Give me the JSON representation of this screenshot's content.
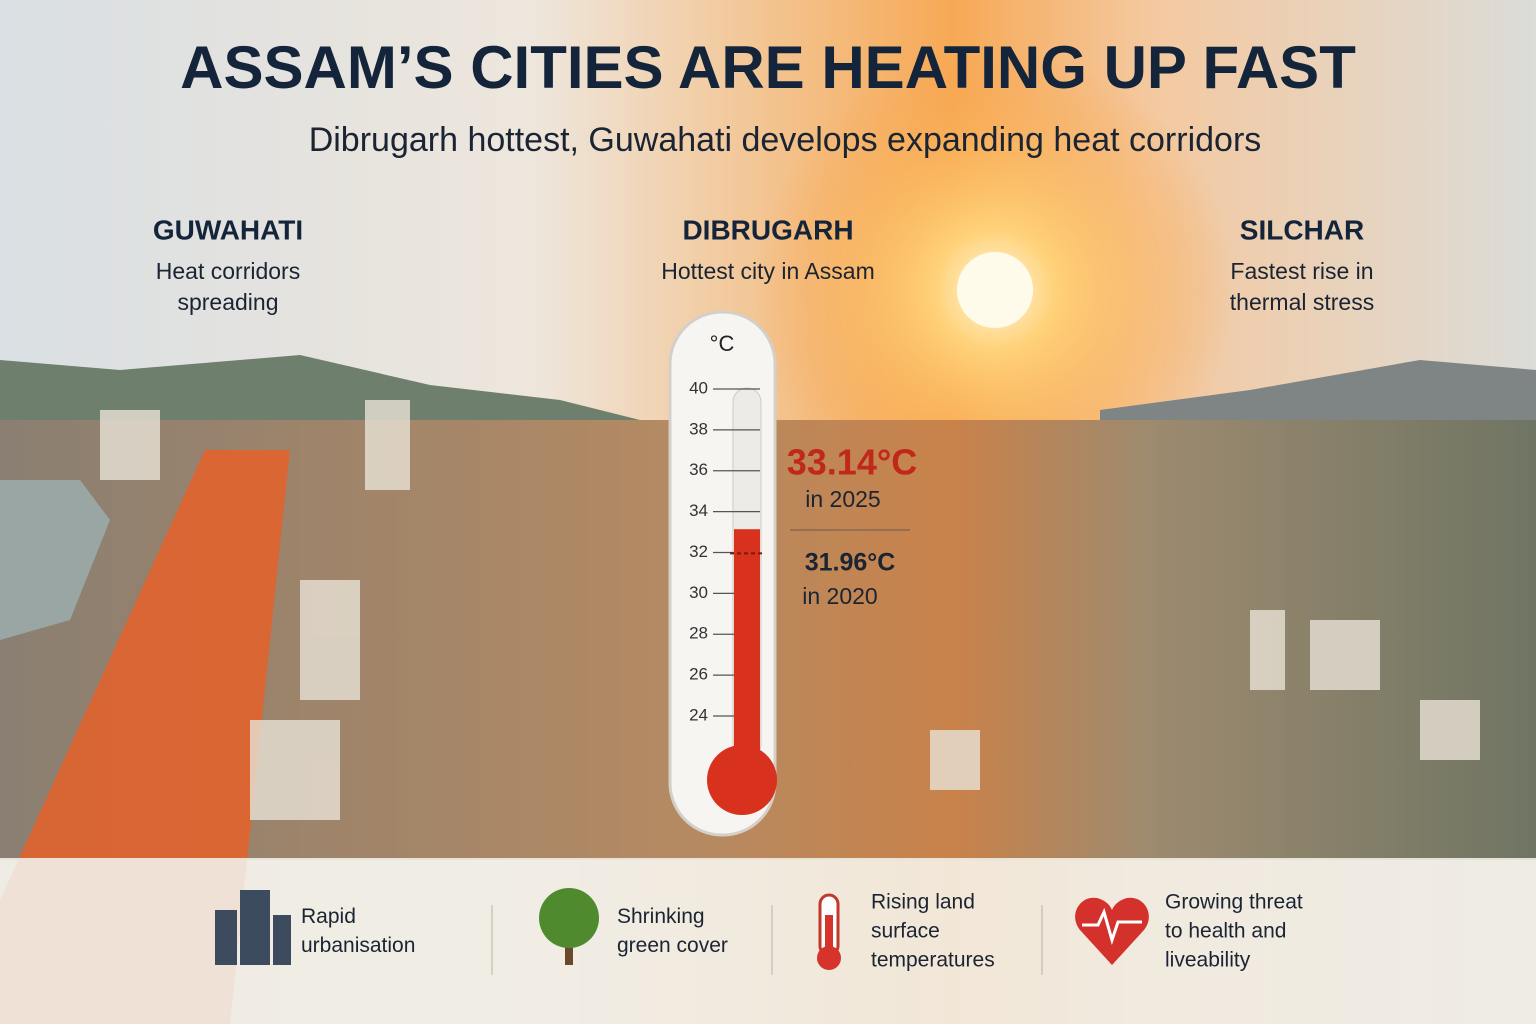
{
  "header": {
    "title": "ASSAM’S CITIES ARE HEATING UP FAST",
    "subtitle": "Dibrugarh hottest, Guwahati develops expanding heat corridors"
  },
  "cities": [
    {
      "name": "GUWAHATI",
      "description": [
        "Heat corridors",
        "spreading"
      ]
    },
    {
      "name": "DIBRUGARH",
      "description": [
        "Hottest city in Assam"
      ]
    },
    {
      "name": "SILCHAR",
      "description": [
        "Fastest rise in",
        "thermal stress"
      ]
    }
  ],
  "thermometer": {
    "unit": "°C",
    "ticks": [
      40,
      38,
      36,
      34,
      32,
      30,
      28,
      26,
      24
    ],
    "readings": [
      {
        "value": 33.14,
        "label": "33.14°C",
        "year": "in 2025"
      },
      {
        "value": 31.96,
        "label": "31.96°C",
        "year": "in 2020"
      }
    ]
  },
  "factors": [
    {
      "lines": [
        "Rapid",
        "urbanisation"
      ]
    },
    {
      "lines": [
        "Shrinking",
        "green cover"
      ]
    },
    {
      "lines": [
        "Rising land",
        "surface",
        "temperatures"
      ]
    },
    {
      "lines": [
        "Growing threat",
        "to health and",
        "liveability"
      ]
    }
  ]
}
